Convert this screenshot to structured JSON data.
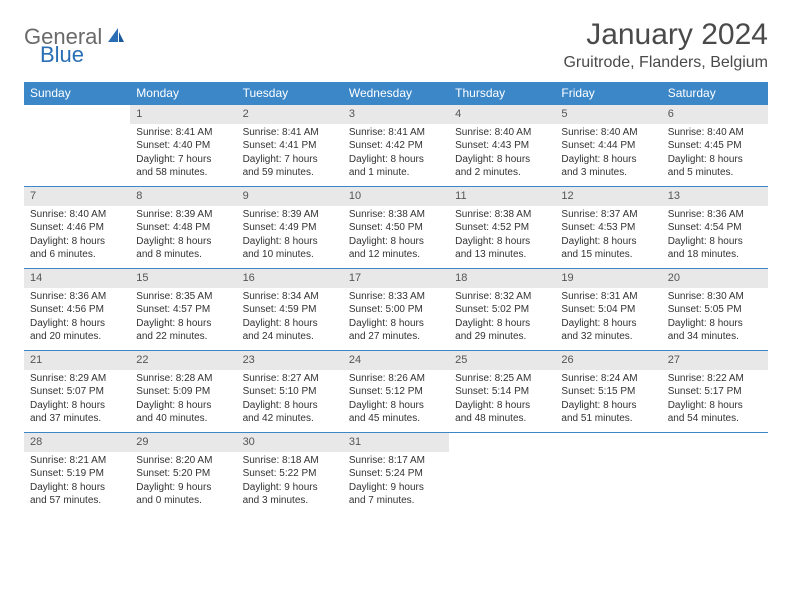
{
  "logo": {
    "text1": "General",
    "text2": "Blue"
  },
  "title": "January 2024",
  "location": "Gruitrode, Flanders, Belgium",
  "colors": {
    "header_bg": "#3b87c8",
    "header_text": "#ffffff",
    "daynum_bg": "#e8e8e8",
    "border": "#3b87c8",
    "text": "#333333",
    "logo_gray": "#6a6a6a",
    "logo_blue": "#2a6fb5"
  },
  "weekdays": [
    "Sunday",
    "Monday",
    "Tuesday",
    "Wednesday",
    "Thursday",
    "Friday",
    "Saturday"
  ],
  "start_offset": 1,
  "days": [
    {
      "n": "1",
      "sunrise": "Sunrise: 8:41 AM",
      "sunset": "Sunset: 4:40 PM",
      "daylight": "Daylight: 7 hours and 58 minutes."
    },
    {
      "n": "2",
      "sunrise": "Sunrise: 8:41 AM",
      "sunset": "Sunset: 4:41 PM",
      "daylight": "Daylight: 7 hours and 59 minutes."
    },
    {
      "n": "3",
      "sunrise": "Sunrise: 8:41 AM",
      "sunset": "Sunset: 4:42 PM",
      "daylight": "Daylight: 8 hours and 1 minute."
    },
    {
      "n": "4",
      "sunrise": "Sunrise: 8:40 AM",
      "sunset": "Sunset: 4:43 PM",
      "daylight": "Daylight: 8 hours and 2 minutes."
    },
    {
      "n": "5",
      "sunrise": "Sunrise: 8:40 AM",
      "sunset": "Sunset: 4:44 PM",
      "daylight": "Daylight: 8 hours and 3 minutes."
    },
    {
      "n": "6",
      "sunrise": "Sunrise: 8:40 AM",
      "sunset": "Sunset: 4:45 PM",
      "daylight": "Daylight: 8 hours and 5 minutes."
    },
    {
      "n": "7",
      "sunrise": "Sunrise: 8:40 AM",
      "sunset": "Sunset: 4:46 PM",
      "daylight": "Daylight: 8 hours and 6 minutes."
    },
    {
      "n": "8",
      "sunrise": "Sunrise: 8:39 AM",
      "sunset": "Sunset: 4:48 PM",
      "daylight": "Daylight: 8 hours and 8 minutes."
    },
    {
      "n": "9",
      "sunrise": "Sunrise: 8:39 AM",
      "sunset": "Sunset: 4:49 PM",
      "daylight": "Daylight: 8 hours and 10 minutes."
    },
    {
      "n": "10",
      "sunrise": "Sunrise: 8:38 AM",
      "sunset": "Sunset: 4:50 PM",
      "daylight": "Daylight: 8 hours and 12 minutes."
    },
    {
      "n": "11",
      "sunrise": "Sunrise: 8:38 AM",
      "sunset": "Sunset: 4:52 PM",
      "daylight": "Daylight: 8 hours and 13 minutes."
    },
    {
      "n": "12",
      "sunrise": "Sunrise: 8:37 AM",
      "sunset": "Sunset: 4:53 PM",
      "daylight": "Daylight: 8 hours and 15 minutes."
    },
    {
      "n": "13",
      "sunrise": "Sunrise: 8:36 AM",
      "sunset": "Sunset: 4:54 PM",
      "daylight": "Daylight: 8 hours and 18 minutes."
    },
    {
      "n": "14",
      "sunrise": "Sunrise: 8:36 AM",
      "sunset": "Sunset: 4:56 PM",
      "daylight": "Daylight: 8 hours and 20 minutes."
    },
    {
      "n": "15",
      "sunrise": "Sunrise: 8:35 AM",
      "sunset": "Sunset: 4:57 PM",
      "daylight": "Daylight: 8 hours and 22 minutes."
    },
    {
      "n": "16",
      "sunrise": "Sunrise: 8:34 AM",
      "sunset": "Sunset: 4:59 PM",
      "daylight": "Daylight: 8 hours and 24 minutes."
    },
    {
      "n": "17",
      "sunrise": "Sunrise: 8:33 AM",
      "sunset": "Sunset: 5:00 PM",
      "daylight": "Daylight: 8 hours and 27 minutes."
    },
    {
      "n": "18",
      "sunrise": "Sunrise: 8:32 AM",
      "sunset": "Sunset: 5:02 PM",
      "daylight": "Daylight: 8 hours and 29 minutes."
    },
    {
      "n": "19",
      "sunrise": "Sunrise: 8:31 AM",
      "sunset": "Sunset: 5:04 PM",
      "daylight": "Daylight: 8 hours and 32 minutes."
    },
    {
      "n": "20",
      "sunrise": "Sunrise: 8:30 AM",
      "sunset": "Sunset: 5:05 PM",
      "daylight": "Daylight: 8 hours and 34 minutes."
    },
    {
      "n": "21",
      "sunrise": "Sunrise: 8:29 AM",
      "sunset": "Sunset: 5:07 PM",
      "daylight": "Daylight: 8 hours and 37 minutes."
    },
    {
      "n": "22",
      "sunrise": "Sunrise: 8:28 AM",
      "sunset": "Sunset: 5:09 PM",
      "daylight": "Daylight: 8 hours and 40 minutes."
    },
    {
      "n": "23",
      "sunrise": "Sunrise: 8:27 AM",
      "sunset": "Sunset: 5:10 PM",
      "daylight": "Daylight: 8 hours and 42 minutes."
    },
    {
      "n": "24",
      "sunrise": "Sunrise: 8:26 AM",
      "sunset": "Sunset: 5:12 PM",
      "daylight": "Daylight: 8 hours and 45 minutes."
    },
    {
      "n": "25",
      "sunrise": "Sunrise: 8:25 AM",
      "sunset": "Sunset: 5:14 PM",
      "daylight": "Daylight: 8 hours and 48 minutes."
    },
    {
      "n": "26",
      "sunrise": "Sunrise: 8:24 AM",
      "sunset": "Sunset: 5:15 PM",
      "daylight": "Daylight: 8 hours and 51 minutes."
    },
    {
      "n": "27",
      "sunrise": "Sunrise: 8:22 AM",
      "sunset": "Sunset: 5:17 PM",
      "daylight": "Daylight: 8 hours and 54 minutes."
    },
    {
      "n": "28",
      "sunrise": "Sunrise: 8:21 AM",
      "sunset": "Sunset: 5:19 PM",
      "daylight": "Daylight: 8 hours and 57 minutes."
    },
    {
      "n": "29",
      "sunrise": "Sunrise: 8:20 AM",
      "sunset": "Sunset: 5:20 PM",
      "daylight": "Daylight: 9 hours and 0 minutes."
    },
    {
      "n": "30",
      "sunrise": "Sunrise: 8:18 AM",
      "sunset": "Sunset: 5:22 PM",
      "daylight": "Daylight: 9 hours and 3 minutes."
    },
    {
      "n": "31",
      "sunrise": "Sunrise: 8:17 AM",
      "sunset": "Sunset: 5:24 PM",
      "daylight": "Daylight: 9 hours and 7 minutes."
    }
  ]
}
